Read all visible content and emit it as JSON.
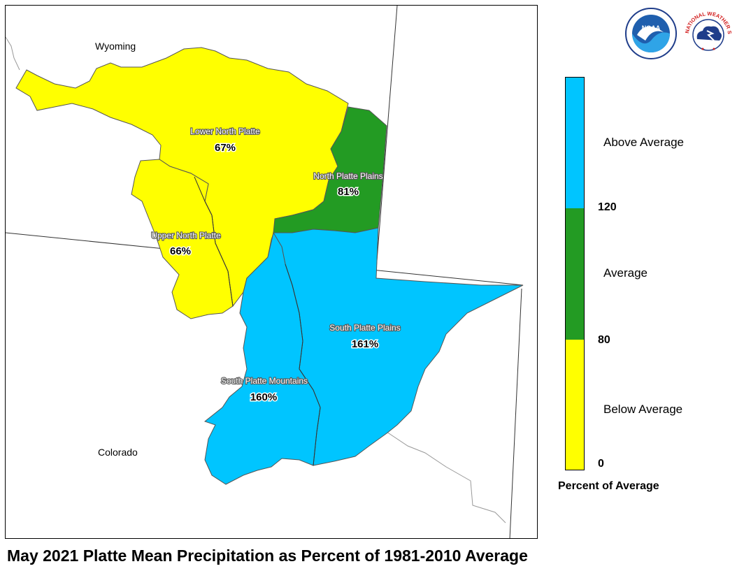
{
  "title": "May 2021 Platte Mean Precipitation as Percent of 1981-2010 Average",
  "states": [
    {
      "name": "Wyoming"
    },
    {
      "name": "Colorado"
    }
  ],
  "regions": [
    {
      "name": "Lower North Platte",
      "value": "67%",
      "category": "Below Average",
      "color": "#ffff00"
    },
    {
      "name": "North Platte Plains",
      "value": "81%",
      "category": "Average",
      "color": "#239b23"
    },
    {
      "name": "Upper North Platte",
      "value": "66%",
      "category": "Below Average",
      "color": "#ffff00"
    },
    {
      "name": "South Platte Plains",
      "value": "161%",
      "category": "Above Average",
      "color": "#00c5ff"
    },
    {
      "name": "South Platte Mountains",
      "value": "160%",
      "category": "Above Average",
      "color": "#00c5ff"
    }
  ],
  "legend": {
    "title": "Percent of Average",
    "categories": [
      {
        "label": "Above Average",
        "color": "#00c5ff"
      },
      {
        "label": "Average",
        "color": "#239b23"
      },
      {
        "label": "Below Average",
        "color": "#ffff00"
      }
    ],
    "ticks": [
      "120",
      "80",
      "0"
    ]
  },
  "logos": {
    "noaa": {
      "text": "NOAA",
      "icon": "noaa-logo-icon"
    },
    "nws": {
      "text": "NATIONAL WEATHER SERVICE",
      "icon": "nws-logo-icon"
    }
  }
}
